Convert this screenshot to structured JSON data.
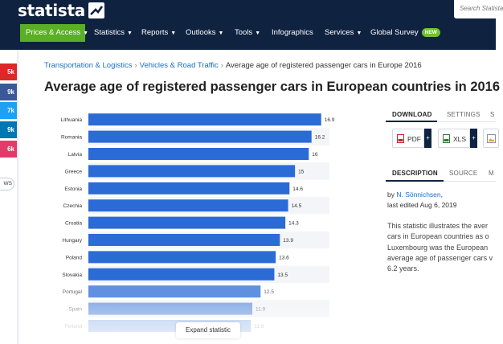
{
  "header": {
    "logo_text": "statista",
    "search_placeholder": "Search Statista",
    "nav": [
      {
        "label": "Prices & Access"
      },
      {
        "label": "Statistics"
      },
      {
        "label": "Reports"
      },
      {
        "label": "Outlooks"
      },
      {
        "label": "Tools"
      },
      {
        "label": "Infographics"
      },
      {
        "label": "Services"
      },
      {
        "label": "Global Survey"
      }
    ],
    "new_badge": "NEW"
  },
  "sidebar": {
    "share_counts": [
      "5k",
      "9k",
      "7k",
      "9k",
      "6k"
    ],
    "news_label": "WS",
    "colors": [
      "#de2727",
      "#3b5998",
      "#1da1f2",
      "#0077b5",
      "#e6396b"
    ]
  },
  "breadcrumb": {
    "items": [
      "Transportation & Logistics",
      "Vehicles & Road Traffic"
    ],
    "current": "Average age of registered passenger cars in Europe 2016"
  },
  "page": {
    "title": "Average age of registered passenger cars in European countries in 2016"
  },
  "chart_data": {
    "type": "bar",
    "orientation": "horizontal",
    "categories": [
      "Lithuania",
      "Romania",
      "Latvia",
      "Greece",
      "Estonia",
      "Czechia",
      "Croatia",
      "Hungary",
      "Poland",
      "Slovakia",
      "Portugal",
      "Spain",
      "Finland"
    ],
    "values": [
      16.9,
      16.2,
      16,
      15,
      14.6,
      14.5,
      14.3,
      13.9,
      13.6,
      13.5,
      12.5,
      11.9,
      11.8
    ],
    "value_labels": [
      "16.9",
      "16.2",
      "16",
      "15",
      "14.6",
      "14.5",
      "14.3",
      "13.9",
      "13.6",
      "13.5",
      "12.5",
      "11.9",
      "11.8"
    ],
    "xlim": [
      0,
      17.5
    ],
    "bar_color": "#2b6bd6",
    "grid": "alternating row stripes",
    "legend": "none"
  },
  "chart_controls": {
    "expand_label": "Expand statistic"
  },
  "right_panel": {
    "tabs": [
      "DOWNLOAD",
      "SETTINGS",
      "S"
    ],
    "download_buttons": [
      "PDF",
      "XLS",
      ""
    ],
    "download_plus": "+",
    "info_tabs": [
      "DESCRIPTION",
      "SOURCE",
      "M"
    ],
    "author_prefix": "by ",
    "author": "N. Sönnichsen",
    "author_suffix": ",",
    "last_edited": "last edited Aug 6, 2019",
    "description_lines": [
      "This statistic illustrates the aver",
      "cars in European countries as o",
      "Luxembourg was the European",
      "average age of passenger cars v",
      "6.2 years."
    ]
  }
}
